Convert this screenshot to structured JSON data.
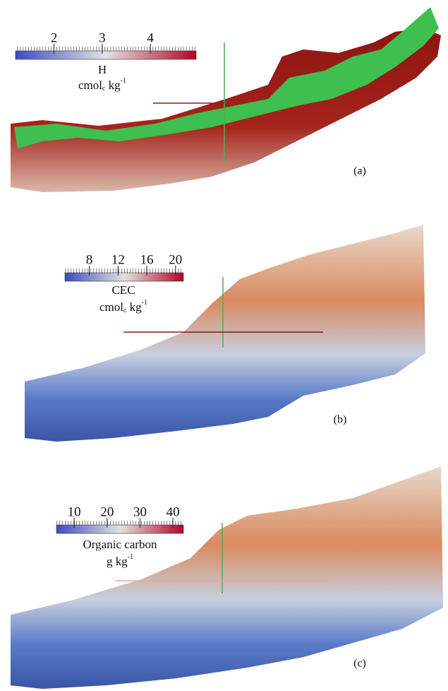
{
  "panels": [
    {
      "label": "(a)",
      "colorbar": {
        "title": "H",
        "unit": {
          "base": "cmol",
          "sub": "c",
          "rest": " kg",
          "sup": "-1"
        },
        "range": [
          1.2,
          4.95
        ],
        "ticks": [
          2,
          3,
          4
        ]
      }
    },
    {
      "label": "(b)",
      "colorbar": {
        "title": "CEC",
        "unit": {
          "base": "cmol",
          "sub": "c",
          "rest": " kg",
          "sup": "-1"
        },
        "range": [
          4.6,
          21.1
        ],
        "ticks": [
          8,
          12,
          16,
          20
        ]
      }
    },
    {
      "label": "(c)",
      "colorbar": {
        "title": "Organic carbon",
        "unit": {
          "base": "g kg",
          "sup": "-1"
        },
        "range": [
          4.6,
          43.2
        ],
        "ticks": [
          10,
          20,
          30,
          40
        ]
      }
    }
  ]
}
